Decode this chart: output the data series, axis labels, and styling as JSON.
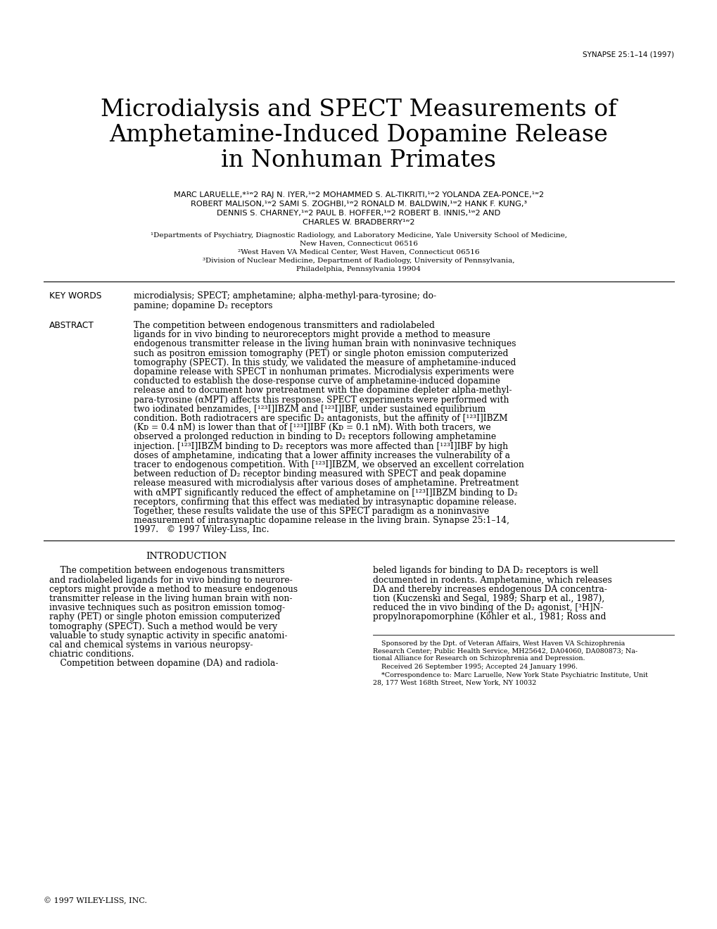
{
  "background_color": "#ffffff",
  "header_journal": "SYNAPSE 25:1–14 (1997)",
  "title_line1": "Microdialysis and SPECT Measurements of",
  "title_line2": "Amphetamine-Induced Dopamine Release",
  "title_line3": "in Nonhuman Primates",
  "kw_label": "KEY WORDS",
  "kw_text_line1": "microdialysis; SPECT; amphetamine; alpha-methyl-para-tyrosine; do-",
  "kw_text_line2": "pamine; dopamine D₂ receptors",
  "abs_label": "ABSTRACT",
  "intro_heading": "INTRODUCTION",
  "copyright_footer": "© 1997 WILEY-LISS, INC."
}
